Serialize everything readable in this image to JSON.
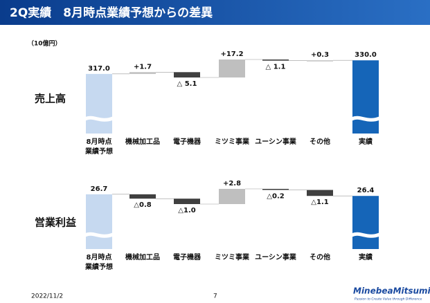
{
  "header": {
    "title": "2Q実績　8月時点業績予想からの差異"
  },
  "unit": "（10億円）",
  "chart_data": [
    {
      "type": "waterfall",
      "title": "売上高",
      "categories": [
        "8月時点\n業績予想",
        "機械加工品",
        "電子機器",
        "ミツミ事業",
        "ユーシン事業",
        "その他",
        "実績"
      ],
      "measure": [
        "absolute",
        "relative",
        "relative",
        "relative",
        "relative",
        "relative",
        "total"
      ],
      "values": [
        317.0,
        1.7,
        -5.1,
        17.2,
        -1.1,
        0.3,
        330.0
      ],
      "value_labels": [
        "317.0",
        "+1.7",
        "△ 5.1",
        "+17.2",
        "△ 1.1",
        "+0.3",
        "330.0"
      ],
      "colors": [
        "#c6d9f0",
        "#bfbfbf",
        "#404040",
        "#bfbfbf",
        "#404040",
        "#bfbfbf",
        "#1565b8"
      ]
    },
    {
      "type": "waterfall",
      "title": "営業利益",
      "categories": [
        "8月時点\n業績予想",
        "機械加工品",
        "電子機器",
        "ミツミ事業",
        "ユーシン事業",
        "その他",
        "実績"
      ],
      "measure": [
        "absolute",
        "relative",
        "relative",
        "relative",
        "relative",
        "relative",
        "total"
      ],
      "values": [
        26.7,
        -0.8,
        -1.0,
        2.8,
        -0.2,
        -1.1,
        26.4
      ],
      "value_labels": [
        "26.7",
        "△0.8",
        "△1.0",
        "+2.8",
        "△0.2",
        "△1.1",
        "26.4"
      ],
      "colors": [
        "#c6d9f0",
        "#404040",
        "#404040",
        "#bfbfbf",
        "#404040",
        "#404040",
        "#1565b8"
      ]
    }
  ],
  "footer": {
    "date": "2022/11/2",
    "page": "7",
    "logo": "MinebeaMitsumi",
    "tagline": "Passion to Create Value through Difference"
  }
}
